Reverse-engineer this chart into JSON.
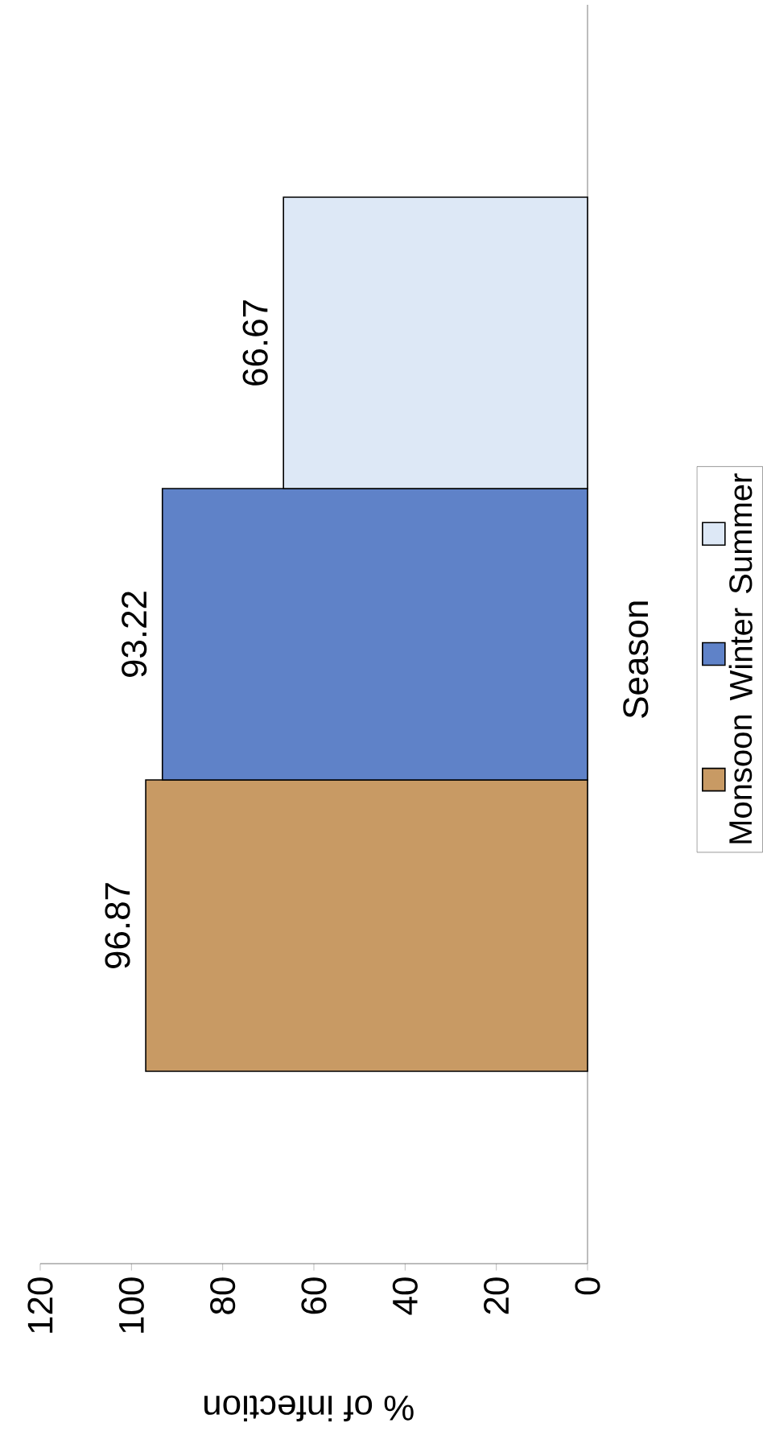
{
  "chart_data": {
    "type": "bar",
    "orientation": "horizontal",
    "xlabel": "% of infection",
    "ylabel": "Season",
    "categories": [
      null
    ],
    "series": [
      {
        "name": "Monsoon",
        "color": "#c89a64",
        "values": [
          96.87
        ]
      },
      {
        "name": "Winter",
        "color": "#5f82c8",
        "values": [
          93.22
        ]
      },
      {
        "name": "Summer",
        "color": "#dde8f6",
        "values": [
          66.67
        ]
      }
    ],
    "xlim": [
      120,
      0
    ],
    "xticks": [
      0,
      20,
      40,
      60,
      80,
      100,
      120
    ],
    "data_labels": true,
    "legend": "right"
  }
}
